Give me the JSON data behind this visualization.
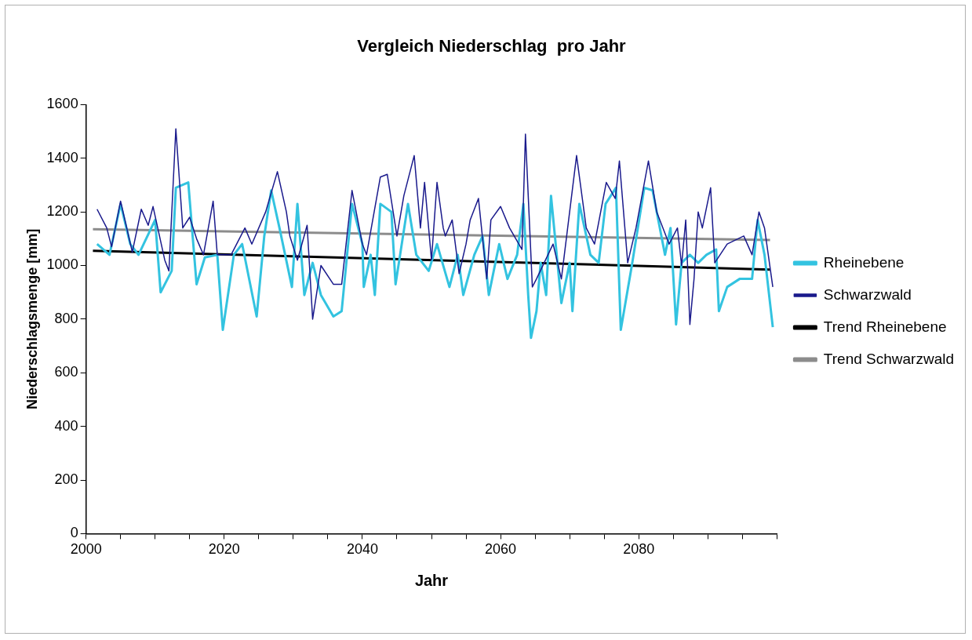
{
  "chart_data": {
    "type": "line",
    "title": "Vergleich Niederschlag  pro Jahr",
    "xlabel": "Jahr",
    "ylabel": "Niederschlagsmenge [mm]",
    "xlim": [
      2000,
      2100
    ],
    "xticks": [
      2000,
      {
        "value": 2005,
        "label": null
      },
      {
        "value": 2010,
        "label": null
      },
      {
        "value": 2015,
        "label": null
      },
      2020,
      {
        "value": 2025,
        "label": null
      },
      {
        "value": 2030,
        "label": null
      },
      {
        "value": 2035,
        "label": null
      },
      2040,
      {
        "value": 2045,
        "label": null
      },
      {
        "value": 2050,
        "label": null
      },
      {
        "value": 2055,
        "label": null
      },
      2060,
      {
        "value": 2065,
        "label": null
      },
      {
        "value": 2070,
        "label": null
      },
      {
        "value": 2075,
        "label": null
      },
      2080,
      {
        "value": 2085,
        "label": null
      },
      {
        "value": 2090,
        "label": null
      },
      {
        "value": 2095,
        "label": null
      },
      {
        "value": 2100,
        "label": null
      }
    ],
    "ylim": [
      0,
      1600
    ],
    "yticks": [
      0,
      200,
      400,
      600,
      800,
      1000,
      1200,
      1400,
      1600
    ],
    "grid": false,
    "legend": "right",
    "marker": "none",
    "series": [
      {
        "name": "Rheinebene",
        "color": "#33c3e0",
        "x": [
          2001.6,
          2003.4,
          2005,
          2006.4,
          2007.6,
          2010,
          2010.8,
          2012.4,
          2013,
          2014.8,
          2016,
          2017.2,
          2019,
          2019.8,
          2021.4,
          2022.6,
          2024.7,
          2025.8,
          2026.8,
          2028,
          2029.8,
          2030.6,
          2031.6,
          2032.8,
          2034,
          2035.8,
          2037,
          2038.5,
          2040,
          2040.2,
          2041.2,
          2041.8,
          2042.6,
          2044.2,
          2044.8,
          2046.6,
          2047.8,
          2049.6,
          2050.8,
          2052.6,
          2053.8,
          2054.6,
          2056.2,
          2057.4,
          2058.3,
          2059.8,
          2061,
          2062.4,
          2063.3,
          2064,
          2064.4,
          2065.2,
          2065.8,
          2066.6,
          2067.3,
          2068.8,
          2070,
          2070.4,
          2071.4,
          2073,
          2074.2,
          2075.2,
          2076.7,
          2077.4,
          2079,
          2080.8,
          2082,
          2083.8,
          2084.6,
          2085.4,
          2086.2,
          2087.4,
          2088.6,
          2089.8,
          2091.2,
          2091.6,
          2092.8,
          2094.6,
          2096.4,
          2097.2,
          2098.2,
          2099.4
        ],
        "values": [
          1080,
          1040,
          1230,
          1080,
          1040,
          1170,
          900,
          980,
          1290,
          1310,
          930,
          1030,
          1040,
          760,
          1040,
          1080,
          810,
          1110,
          1280,
          1140,
          920,
          1230,
          890,
          1010,
          890,
          810,
          830,
          1230,
          1080,
          920,
          1040,
          890,
          1230,
          1200,
          930,
          1230,
          1040,
          980,
          1080,
          920,
          1040,
          890,
          1040,
          1110,
          890,
          1080,
          950,
          1040,
          1230,
          890,
          730,
          830,
          1010,
          890,
          1260,
          860,
          1010,
          830,
          1230,
          1040,
          1010,
          1230,
          1290,
          760,
          1000,
          1290,
          1280,
          1040,
          1140,
          780,
          1010,
          1040,
          1010,
          1040,
          1060,
          830,
          920,
          950,
          950,
          1170,
          1040,
          770
        ]
      },
      {
        "name": "Schwarzwald",
        "color": "#1a1a8c",
        "x": [
          2001.6,
          2003,
          2003.7,
          2005,
          2006.7,
          2008,
          2009,
          2009.7,
          2011.4,
          2012,
          2013,
          2014,
          2015,
          2016,
          2017,
          2018.4,
          2019,
          2021,
          2023,
          2024,
          2026,
          2027.7,
          2029,
          2029.5,
          2030.6,
          2032,
          2032.8,
          2034,
          2035.8,
          2037,
          2038.5,
          2040,
          2040.6,
          2042.6,
          2043.6,
          2045,
          2046,
          2047.5,
          2048.4,
          2049,
          2050,
          2050.8,
          2051.7,
          2052,
          2053,
          2054,
          2055,
          2055.6,
          2056.8,
          2058,
          2058.6,
          2060,
          2061.3,
          2063.1,
          2063.6,
          2064.6,
          2065.2,
          2067.6,
          2068.8,
          2071,
          2072.4,
          2073.6,
          2075.3,
          2076.6,
          2077.2,
          2078.4,
          2079.6,
          2081.4,
          2082.6,
          2084.4,
          2085.6,
          2086.2,
          2086.8,
          2087.4,
          2088,
          2088.6,
          2089.2,
          2090.4,
          2091,
          2092.8,
          2095.2,
          2096.4,
          2097.4,
          2098.2,
          2099.4
        ],
        "values": [
          1210,
          1140,
          1070,
          1240,
          1050,
          1210,
          1150,
          1220,
          1020,
          980,
          1510,
          1140,
          1180,
          1100,
          1040,
          1240,
          1040,
          1040,
          1140,
          1080,
          1200,
          1350,
          1200,
          1110,
          1020,
          1150,
          800,
          1000,
          930,
          930,
          1280,
          1080,
          1040,
          1330,
          1340,
          1110,
          1260,
          1410,
          1140,
          1310,
          1020,
          1310,
          1140,
          1110,
          1170,
          970,
          1080,
          1170,
          1250,
          950,
          1170,
          1220,
          1140,
          1060,
          1490,
          920,
          950,
          1080,
          950,
          1410,
          1140,
          1080,
          1310,
          1250,
          1390,
          1010,
          1140,
          1390,
          1200,
          1080,
          1140,
          1000,
          1170,
          780,
          950,
          1200,
          1140,
          1290,
          1010,
          1080,
          1110,
          1040,
          1200,
          1140,
          920
        ]
      },
      {
        "name": "Trend Rheinebene",
        "color": "#000000",
        "x": [
          2001,
          2099
        ],
        "values": [
          1055,
          985
        ]
      },
      {
        "name": "Trend Schwarzwald",
        "color": "#8c8c8c",
        "x": [
          2001,
          2099
        ],
        "values": [
          1135,
          1095
        ]
      }
    ]
  }
}
